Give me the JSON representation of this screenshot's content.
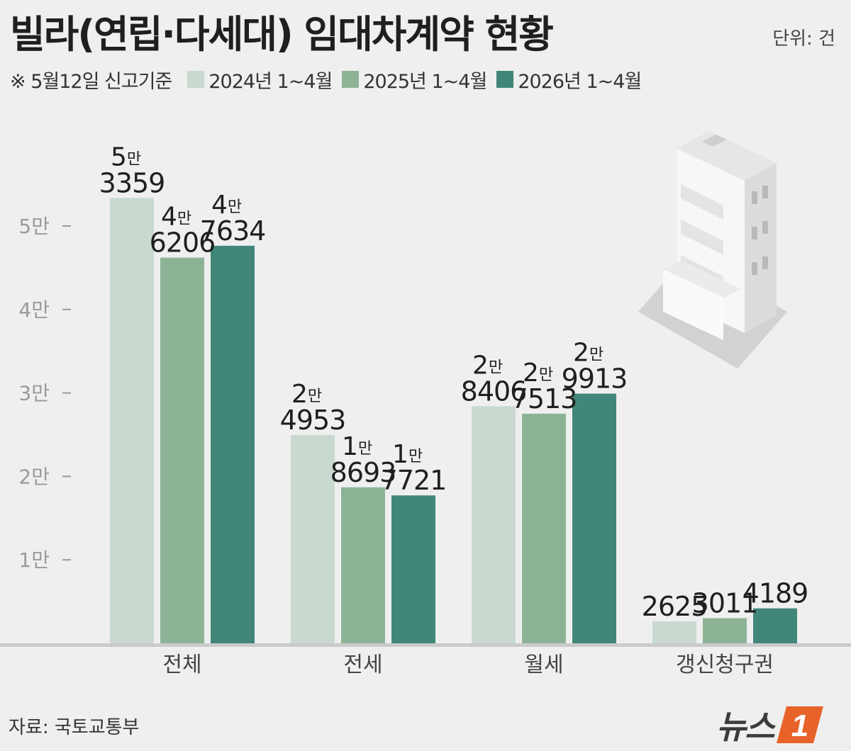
{
  "title": "빌라(연립·다세대) 임대차계약 현황",
  "unit_label": "단위: 건",
  "note": "※ 5월12일 신고기준",
  "source": "자료: 국토교통부",
  "logo": {
    "text": "뉴스",
    "badge": "1"
  },
  "chart_data": {
    "type": "bar",
    "categories": [
      "전체",
      "전세",
      "월세",
      "갱신청구권"
    ],
    "series": [
      {
        "name": "2024년 1~4월",
        "color": "#c9d9cf",
        "values": [
          53359,
          24953,
          28406,
          2625
        ],
        "labels": [
          {
            "man": "5",
            "rest": "3359"
          },
          {
            "man": "2",
            "rest": "4953"
          },
          {
            "man": "2",
            "rest": "8406"
          },
          {
            "man": "",
            "rest": "2625"
          }
        ]
      },
      {
        "name": "2025년 1~4월",
        "color": "#8db396",
        "values": [
          46206,
          18693,
          27513,
          3011
        ],
        "labels": [
          {
            "man": "4",
            "rest": "6206"
          },
          {
            "man": "1",
            "rest": "8693"
          },
          {
            "man": "2",
            "rest": "7513"
          },
          {
            "man": "",
            "rest": "3011"
          }
        ]
      },
      {
        "name": "2026년 1~4월",
        "color": "#418779",
        "values": [
          47634,
          17721,
          29913,
          4189
        ],
        "labels": [
          {
            "man": "4",
            "rest": "7634"
          },
          {
            "man": "1",
            "rest": "7721"
          },
          {
            "man": "2",
            "rest": "9913"
          },
          {
            "man": "",
            "rest": "4189"
          }
        ]
      }
    ],
    "y_ticks": [
      {
        "value": 10000,
        "label": "1만"
      },
      {
        "value": 20000,
        "label": "2만"
      },
      {
        "value": 30000,
        "label": "3만"
      },
      {
        "value": 40000,
        "label": "4만"
      },
      {
        "value": 50000,
        "label": "5만"
      }
    ],
    "man_suffix": "만",
    "ylim": [
      0,
      55000
    ],
    "grid": false,
    "legend_position": "top-left"
  }
}
